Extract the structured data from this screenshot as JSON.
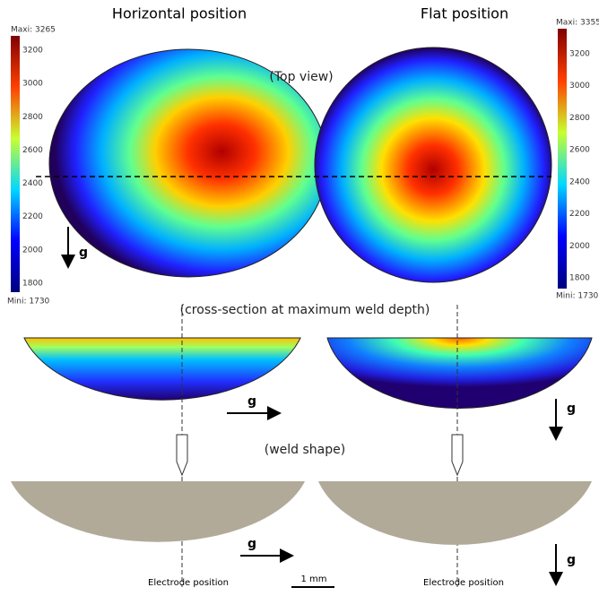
{
  "titles": [
    "Horizontal position",
    "Flat position"
  ],
  "colorbars": [
    {
      "max": "Maxi: 3265",
      "min": "Mini: 1730",
      "ticks": [
        "3200",
        "3000",
        "2800",
        "2600",
        "2400",
        "2200",
        "2000",
        "1800"
      ]
    },
    {
      "max": "Maxi: 3355",
      "min": "Mini: 1730",
      "ticks": [
        "3200",
        "3000",
        "2800",
        "2600",
        "2400",
        "2200",
        "2000",
        "1800"
      ]
    }
  ],
  "labels": {
    "top_view": "(Top view)",
    "cross_section": "(cross-section at maximum weld depth)",
    "weld_shape": "(weld shape)"
  },
  "gravity": [
    "g",
    "g",
    "g",
    "g",
    "g"
  ],
  "electrode": [
    "Electrode position",
    "Electrode position"
  ],
  "scale": "1 mm"
}
